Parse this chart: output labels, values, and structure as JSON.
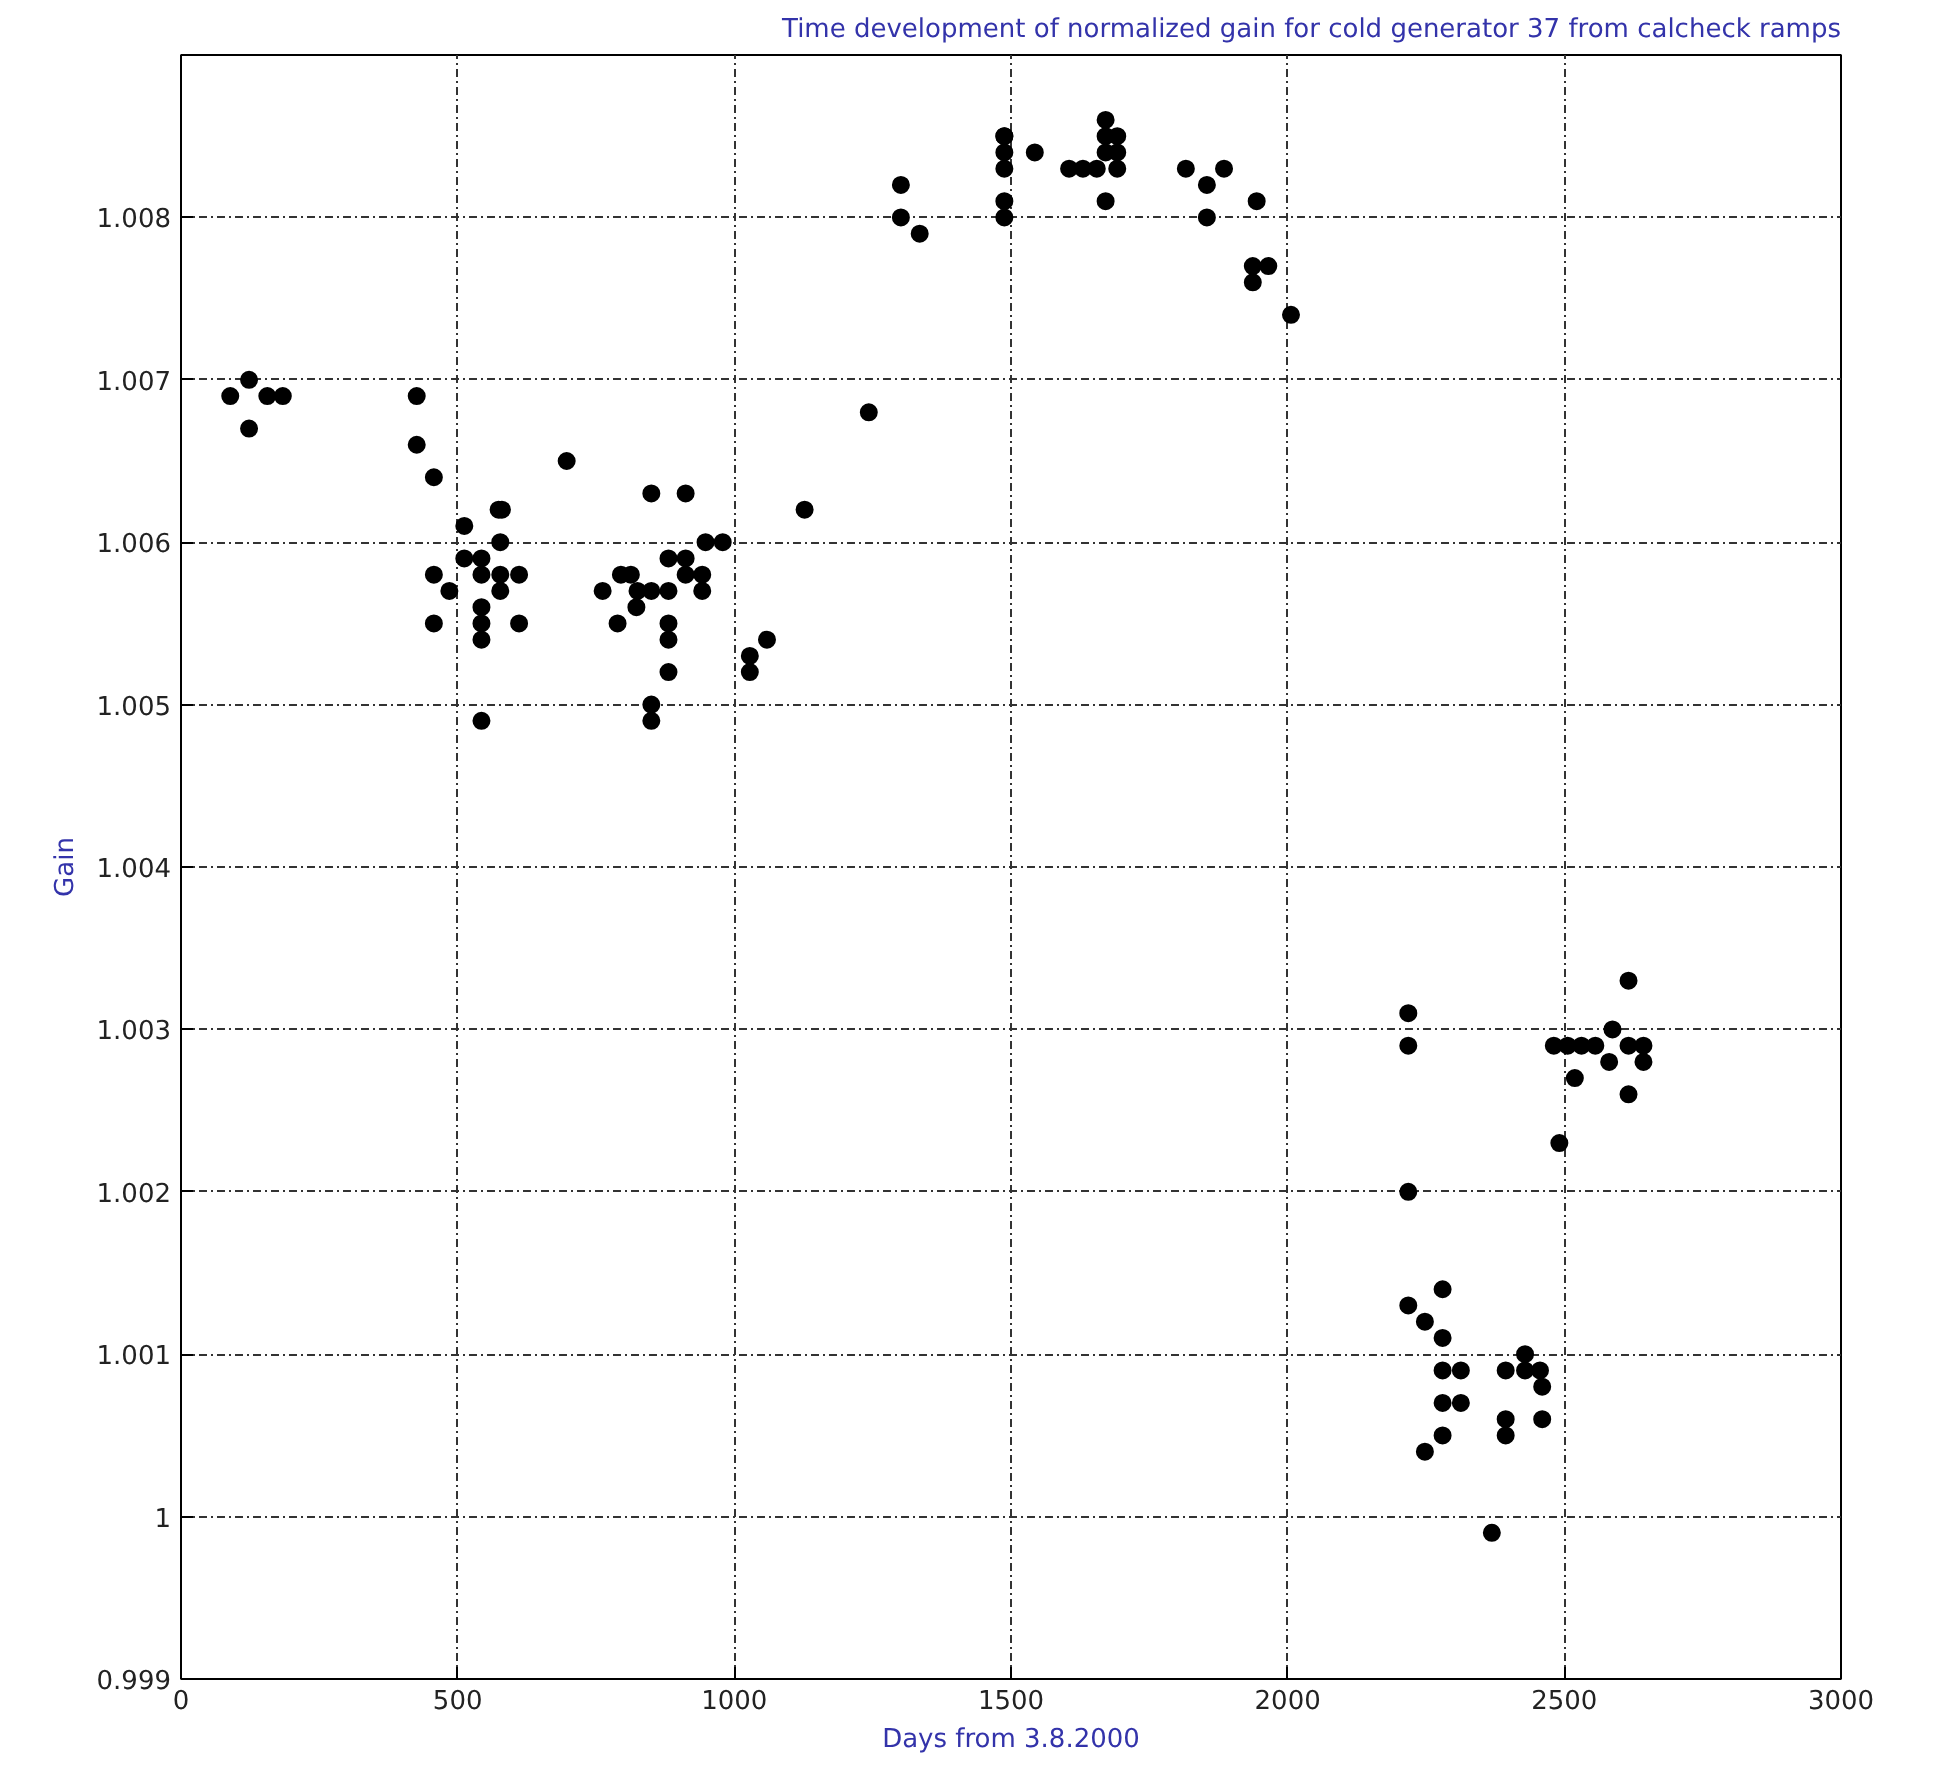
{
  "chart_data": {
    "type": "scatter",
    "title": "Time development of normalized gain for cold generator 37 from calcheck ramps",
    "xlabel": "Days from 3.8.2000",
    "ylabel": "Gain",
    "xlim": [
      0,
      3000
    ],
    "xticks": [
      0,
      500,
      1000,
      1500,
      2000,
      2500,
      3000
    ],
    "ylim": [
      0.999,
      1.009
    ],
    "yticks": [
      0.999,
      1,
      1.001,
      1.002,
      1.003,
      1.004,
      1.005,
      1.006,
      1.007,
      1.008
    ],
    "grid": true,
    "marker": "circle",
    "series": [
      {
        "color": "#000000",
        "x": [
          89,
          123,
          123,
          156,
          184,
          426,
          426,
          457,
          697,
          457,
          485,
          457,
          512,
          512,
          543,
          543,
          543,
          543,
          543,
          543,
          574,
          580,
          577,
          577,
          577,
          611,
          611,
          762,
          789,
          795,
          813,
          825,
          823,
          850,
          850,
          881,
          881,
          881,
          881,
          850,
          850,
          912,
          881,
          912,
          912,
          942,
          942,
          948,
          979,
          1028,
          1028,
          1059,
          1127,
          1243,
          1301,
          1301,
          1335,
          1488,
          1488,
          1488,
          1488,
          1488,
          1488,
          1543,
          1605,
          1630,
          1655,
          1671,
          1671,
          1671,
          1671,
          1692,
          1692,
          1692,
          1816,
          1854,
          1854,
          1885,
          1944,
          1937,
          1937,
          1965,
          2006,
          2218,
          2218,
          2218,
          2218,
          2248,
          2280,
          2280,
          2280,
          2313,
          2280,
          2313,
          2280,
          2248,
          2369,
          2394,
          2394,
          2394,
          2429,
          2429,
          2456,
          2460,
          2460,
          2491,
          2519,
          2481,
          2506,
          2531,
          2556,
          2587,
          2581,
          2616,
          2616,
          2616,
          2643,
          2643
        ],
        "values": [
          1.0069,
          1.007,
          1.0067,
          1.0069,
          1.0069,
          1.0069,
          1.0066,
          1.0064,
          1.0065,
          1.0058,
          1.0057,
          1.0055,
          1.0061,
          1.0059,
          1.0059,
          1.0058,
          1.0056,
          1.0055,
          1.0054,
          1.0049,
          1.0062,
          1.0062,
          1.006,
          1.0058,
          1.0057,
          1.0058,
          1.0055,
          1.0057,
          1.0055,
          1.0058,
          1.0058,
          1.0057,
          1.0056,
          1.0063,
          1.0057,
          1.0057,
          1.0055,
          1.0054,
          1.0052,
          1.005,
          1.0049,
          1.0063,
          1.0059,
          1.0059,
          1.0058,
          1.0058,
          1.0057,
          1.006,
          1.006,
          1.0053,
          1.0052,
          1.0054,
          1.0062,
          1.0068,
          1.0082,
          1.008,
          1.0079,
          1.0085,
          1.0085,
          1.0084,
          1.0083,
          1.0081,
          1.008,
          1.0084,
          1.0083,
          1.0083,
          1.0083,
          1.0086,
          1.0085,
          1.0084,
          1.0081,
          1.0085,
          1.0084,
          1.0083,
          1.0083,
          1.0082,
          1.008,
          1.0083,
          1.0081,
          1.0077,
          1.0076,
          1.0077,
          1.0074,
          1.0031,
          1.0029,
          1.002,
          1.0013,
          1.0012,
          1.0014,
          1.0011,
          1.0009,
          1.0009,
          1.0007,
          1.0007,
          1.0005,
          1.0004,
          0.9999,
          1.0009,
          1.0006,
          1.0005,
          1.001,
          1.0009,
          1.0009,
          1.0008,
          1.0006,
          1.0023,
          1.0027,
          1.0029,
          1.0029,
          1.0029,
          1.0029,
          1.003,
          1.0028,
          1.0033,
          1.0029,
          1.0026,
          1.0029,
          1.0028
        ]
      }
    ]
  }
}
